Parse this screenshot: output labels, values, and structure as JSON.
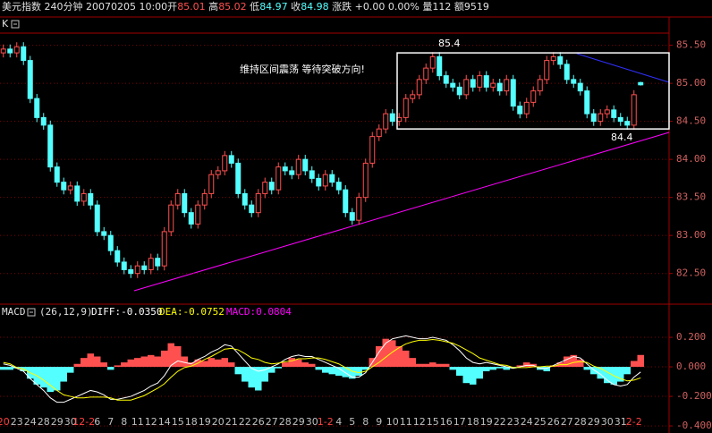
{
  "header": [
    {
      "text": "美元指数 240分钟  20070205 10:00开",
      "color": "#e0e0e0"
    },
    {
      "text": "85.01",
      "color": "#ff5050"
    },
    {
      "text": " 高",
      "color": "#e0e0e0"
    },
    {
      "text": "85.02",
      "color": "#ff5050"
    },
    {
      "text": " 低",
      "color": "#e0e0e0"
    },
    {
      "text": "84.97",
      "color": "#54ffff"
    },
    {
      "text": " 收",
      "color": "#e0e0e0"
    },
    {
      "text": "84.98",
      "color": "#54ffff"
    },
    {
      "text": " 涨跌 +0.00 0.00% 量112 额9519",
      "color": "#e0e0e0"
    }
  ],
  "chart_data": [
    {
      "type": "candlestick",
      "title": "K",
      "categories": [
        "20",
        null,
        "23",
        null,
        "24",
        null,
        "28",
        null,
        "29",
        null,
        "30",
        null,
        "12-2",
        null,
        "6",
        null,
        "7",
        null,
        "8",
        null,
        "11",
        null,
        "12",
        null,
        "14",
        null,
        "15",
        null,
        "18",
        null,
        "19",
        null,
        "20",
        null,
        "21",
        null,
        "22",
        null,
        "26",
        null,
        "27",
        null,
        "28",
        null,
        "29",
        null,
        "30",
        null,
        "1-2",
        null,
        "4",
        null,
        "5",
        null,
        "8",
        null,
        "9",
        null,
        "10",
        null,
        "11",
        null,
        "12",
        null,
        "15",
        null,
        "16",
        null,
        "17",
        null,
        "18",
        null,
        "19",
        null,
        "22",
        null,
        "23",
        null,
        "24",
        null,
        "25",
        null,
        "26",
        null,
        "27",
        null,
        "28",
        null,
        "29",
        null,
        "30",
        null,
        "31",
        null,
        "2-2",
        null
      ],
      "open": [
        85.4,
        85.45,
        85.4,
        85.48,
        85.3,
        84.8,
        84.55,
        84.45,
        83.9,
        83.7,
        83.6,
        83.65,
        83.45,
        83.55,
        83.4,
        83.05,
        83,
        82.8,
        82.65,
        82.55,
        82.5,
        82.6,
        82.55,
        82.7,
        82.6,
        83.05,
        83.4,
        83.55,
        83.3,
        83.15,
        83.4,
        83.55,
        83.8,
        83.85,
        84.05,
        83.95,
        83.55,
        83.4,
        83.3,
        83.55,
        83.7,
        83.6,
        83.9,
        83.85,
        83.8,
        84,
        83.85,
        83.75,
        83.65,
        83.8,
        83.7,
        83.6,
        83.3,
        83.2,
        83.5,
        83.95,
        84.3,
        84.4,
        84.6,
        84.5,
        84.55,
        84.8,
        84.85,
        85.05,
        85.2,
        85.35,
        85.1,
        85,
        84.95,
        84.85,
        85.05,
        84.95,
        85.1,
        84.95,
        85,
        84.9,
        85.05,
        84.7,
        84.6,
        84.75,
        84.9,
        85.05,
        85.3,
        85.35,
        85.25,
        85.05,
        85,
        84.9,
        84.6,
        84.5,
        84.6,
        84.65,
        84.55,
        84.5,
        84.45,
        85.01
      ],
      "high": [
        85.51,
        85.51,
        85.54,
        85.54,
        85.36,
        84.86,
        84.61,
        84.51,
        83.96,
        83.76,
        83.71,
        83.71,
        83.61,
        83.61,
        83.46,
        83.11,
        83.06,
        82.86,
        82.71,
        82.61,
        82.66,
        82.66,
        82.76,
        82.76,
        83.11,
        83.46,
        83.61,
        83.61,
        83.36,
        83.46,
        83.61,
        83.86,
        83.91,
        84.11,
        84.11,
        84.01,
        83.61,
        83.46,
        83.61,
        83.76,
        83.76,
        83.96,
        83.96,
        83.91,
        84.06,
        84.06,
        83.91,
        83.81,
        83.86,
        83.86,
        83.76,
        83.66,
        83.36,
        83.56,
        84.01,
        84.36,
        84.46,
        84.66,
        84.66,
        84.61,
        84.86,
        84.91,
        85.11,
        85.26,
        85.41,
        85.41,
        85.16,
        85.06,
        85.01,
        85.11,
        85.11,
        85.16,
        85.16,
        85.06,
        85.06,
        85.11,
        85.11,
        84.76,
        84.81,
        84.96,
        85.11,
        85.36,
        85.41,
        85.41,
        85.31,
        85.11,
        85.06,
        84.96,
        84.66,
        84.66,
        84.71,
        84.71,
        84.61,
        84.56,
        84.91,
        85.02
      ],
      "low": [
        85.34,
        85.34,
        85.34,
        85.24,
        84.74,
        84.49,
        84.39,
        83.84,
        83.64,
        83.54,
        83.54,
        83.39,
        83.39,
        83.34,
        82.99,
        82.94,
        82.74,
        82.59,
        82.49,
        82.44,
        82.44,
        82.49,
        82.49,
        82.54,
        82.54,
        82.99,
        83.34,
        83.24,
        83.09,
        83.09,
        83.34,
        83.49,
        83.74,
        83.79,
        83.89,
        83.49,
        83.34,
        83.24,
        83.24,
        83.49,
        83.54,
        83.54,
        83.79,
        83.74,
        83.74,
        83.79,
        83.69,
        83.59,
        83.59,
        83.64,
        83.54,
        83.24,
        83.14,
        83.14,
        83.44,
        83.89,
        84.24,
        84.34,
        84.44,
        84.44,
        84.49,
        84.74,
        84.79,
        84.99,
        85.14,
        85.04,
        84.94,
        84.89,
        84.79,
        84.79,
        84.89,
        84.89,
        84.89,
        84.89,
        84.84,
        84.84,
        84.64,
        84.54,
        84.54,
        84.69,
        84.84,
        84.99,
        85.24,
        85.19,
        84.99,
        84.94,
        84.84,
        84.54,
        84.44,
        84.44,
        84.54,
        84.49,
        84.44,
        84.39,
        84.39,
        84.97
      ],
      "close": [
        85.45,
        85.4,
        85.48,
        85.3,
        84.8,
        84.55,
        84.45,
        83.9,
        83.7,
        83.6,
        83.65,
        83.45,
        83.55,
        83.4,
        83.05,
        83,
        82.8,
        82.65,
        82.55,
        82.5,
        82.6,
        82.55,
        82.7,
        82.6,
        83.05,
        83.4,
        83.55,
        83.3,
        83.15,
        83.4,
        83.55,
        83.8,
        83.85,
        84.05,
        83.95,
        83.55,
        83.4,
        83.3,
        83.55,
        83.7,
        83.6,
        83.9,
        83.85,
        83.8,
        84,
        83.85,
        83.75,
        83.65,
        83.8,
        83.7,
        83.6,
        83.3,
        83.2,
        83.5,
        83.95,
        84.3,
        84.4,
        84.6,
        84.5,
        84.55,
        84.8,
        84.85,
        85.05,
        85.2,
        85.35,
        85.1,
        85,
        84.95,
        84.85,
        85.05,
        84.95,
        85.1,
        84.95,
        85,
        84.9,
        85.05,
        84.7,
        84.6,
        84.75,
        84.9,
        85.05,
        85.3,
        85.35,
        85.25,
        85.05,
        85,
        84.9,
        84.6,
        84.5,
        84.6,
        84.65,
        84.55,
        84.5,
        84.45,
        84.85,
        84.98
      ],
      "up_color": "#ff5050",
      "down_color": "#54ffff",
      "ylim": [
        82.12,
        85.66
      ],
      "yticks": [
        {
          "value": 82.5,
          "label": "82.50"
        },
        {
          "value": 83,
          "label": "83.00"
        },
        {
          "value": 83.5,
          "label": "83.50"
        },
        {
          "value": 84,
          "label": "84.00"
        },
        {
          "value": 84.5,
          "label": "84.50"
        },
        {
          "value": 85,
          "label": "85.00"
        },
        {
          "value": 85.5,
          "label": "85.50"
        }
      ],
      "grid": true,
      "annotation": "维持区间震荡 等待突破方向!",
      "box": {
        "top": 85.4,
        "bottom": 84.4,
        "color": "#ffffff"
      }
    },
    {
      "type": "macd",
      "title": "MACD",
      "params": "(26,12,9)",
      "series": [
        {
          "name": "DIFF:-0.0350",
          "color": "#ffffff",
          "values": [
            0.02,
            0.01,
            -0.01,
            -0.03,
            -0.08,
            -0.12,
            -0.16,
            -0.21,
            -0.24,
            -0.24,
            -0.22,
            -0.2,
            -0.18,
            -0.16,
            -0.17,
            -0.19,
            -0.22,
            -0.22,
            -0.21,
            -0.2,
            -0.18,
            -0.16,
            -0.13,
            -0.11,
            -0.06,
            0.01,
            0.04,
            0.03,
            0.02,
            0.05,
            0.07,
            0.1,
            0.12,
            0.15,
            0.14,
            0.09,
            0.04,
            -0.01,
            -0.03,
            -0.02,
            0,
            0.02,
            0.05,
            0.07,
            0.08,
            0.07,
            0.07,
            0.05,
            0.03,
            0.01,
            -0.01,
            -0.04,
            -0.07,
            -0.07,
            -0.04,
            0.03,
            0.1,
            0.16,
            0.19,
            0.2,
            0.21,
            0.2,
            0.19,
            0.19,
            0.2,
            0.19,
            0.18,
            0.15,
            0.11,
            0.06,
            0.03,
            0.02,
            0.03,
            0.02,
            0.01,
            0,
            -0.01,
            0,
            0.01,
            0.01,
            -0.01,
            -0.01,
            0.01,
            0.03,
            0.05,
            0.07,
            0.06,
            0.02,
            -0.02,
            -0.05,
            -0.09,
            -0.12,
            -0.13,
            -0.12,
            -0.07,
            -0.035
          ]
        },
        {
          "name": "DEA:-0.0752",
          "color": "#ffff00",
          "values": [
            0.03,
            0.02,
            -0.005,
            -0.015,
            -0.04,
            -0.06,
            -0.09,
            -0.125,
            -0.16,
            -0.19,
            -0.2,
            -0.21,
            -0.21,
            -0.205,
            -0.205,
            -0.205,
            -0.21,
            -0.225,
            -0.225,
            -0.225,
            -0.21,
            -0.195,
            -0.17,
            -0.145,
            -0.115,
            -0.07,
            -0.03,
            -0.005,
            0.005,
            0.025,
            0.05,
            0.07,
            0.095,
            0.12,
            0.125,
            0.115,
            0.09,
            0.06,
            0.05,
            0.03,
            0.02,
            0.025,
            0.035,
            0.04,
            0.055,
            0.055,
            0.06,
            0.06,
            0.05,
            0.035,
            0.02,
            -0.005,
            -0.03,
            -0.04,
            -0.03,
            0,
            0.03,
            0.065,
            0.1,
            0.13,
            0.155,
            0.17,
            0.18,
            0.18,
            0.185,
            0.18,
            0.17,
            0.16,
            0.14,
            0.115,
            0.09,
            0.06,
            0.045,
            0.03,
            0.015,
            0.01,
            -0.005,
            -0.005,
            -0.005,
            0,
            0,
            0.005,
            0.005,
            0.015,
            0.015,
            0.03,
            0.035,
            0.03,
            0.005,
            -0.01,
            -0.035,
            -0.06,
            -0.08,
            -0.095,
            -0.09,
            -0.0752
          ]
        },
        {
          "name": "MACD:0.0804",
          "color": "#ff00ff",
          "up_color": "#ff5050",
          "down_color": "#54ffff",
          "values": [
            -0.02,
            -0.02,
            -0.01,
            -0.03,
            -0.08,
            -0.12,
            -0.14,
            -0.17,
            -0.16,
            -0.1,
            -0.04,
            0.02,
            0.06,
            0.09,
            0.07,
            0.03,
            -0.02,
            0.01,
            0.03,
            0.05,
            0.06,
            0.07,
            0.08,
            0.07,
            0.11,
            0.16,
            0.14,
            0.07,
            0.03,
            0.05,
            0.04,
            0.06,
            0.05,
            0.06,
            0.03,
            -0.05,
            -0.1,
            -0.14,
            -0.16,
            -0.1,
            -0.04,
            -0.01,
            0.03,
            0.06,
            0.05,
            0.03,
            0.02,
            -0.02,
            -0.04,
            -0.05,
            -0.06,
            -0.07,
            -0.08,
            -0.06,
            -0.02,
            0.06,
            0.14,
            0.19,
            0.18,
            0.14,
            0.11,
            0.06,
            0.02,
            0.02,
            0.03,
            0.02,
            0.02,
            -0.02,
            -0.06,
            -0.11,
            -0.12,
            -0.08,
            -0.03,
            -0.02,
            -0.01,
            -0.02,
            -0.01,
            0.01,
            0.03,
            0.02,
            -0.02,
            -0.03,
            0.01,
            0.03,
            0.07,
            0.08,
            0.05,
            -0.02,
            -0.05,
            -0.08,
            -0.11,
            -0.12,
            -0.1,
            -0.05,
            0.04,
            0.0804
          ]
        }
      ],
      "ylim": [
        -0.448,
        0.388
      ],
      "yticks": [
        {
          "value": -0.4,
          "label": "-0.400"
        },
        {
          "value": -0.2,
          "label": "-0.200"
        },
        {
          "value": 0,
          "label": "0.000"
        },
        {
          "value": 0.2,
          "label": "0.200"
        }
      ],
      "grid": true
    }
  ]
}
